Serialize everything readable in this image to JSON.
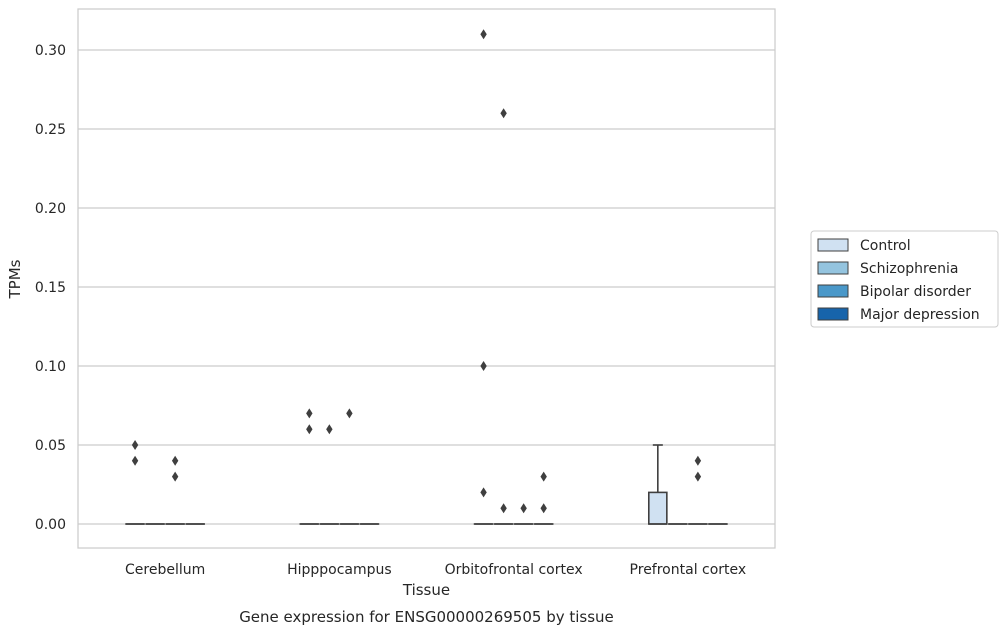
{
  "chart_data": {
    "type": "boxplot",
    "caption": "Gene expression for ENSG00000269505 by tissue",
    "xlabel": "Tissue",
    "ylabel": "TPMs",
    "ylim": [
      -0.015,
      0.325
    ],
    "yticks": [
      0.0,
      0.05,
      0.1,
      0.15,
      0.2,
      0.25,
      0.3
    ],
    "ytick_labels": [
      "0.00",
      "0.05",
      "0.10",
      "0.15",
      "0.20",
      "0.25",
      "0.30"
    ],
    "grid": true,
    "legend_position": "right",
    "categories": [
      "Cerebellum",
      "Hipppocampus",
      "Orbitofrontal cortex",
      "Prefrontal cortex"
    ],
    "series": [
      {
        "name": "Control",
        "color": "#d0e1f2",
        "boxes": [
          {
            "q1": 0,
            "median": 0,
            "q3": 0,
            "whisker_low": 0,
            "whisker_high": 0,
            "outliers": [
              0.05,
              0.04
            ]
          },
          {
            "q1": 0,
            "median": 0,
            "q3": 0,
            "whisker_low": 0,
            "whisker_high": 0,
            "outliers": [
              0.07,
              0.06
            ]
          },
          {
            "q1": 0,
            "median": 0,
            "q3": 0,
            "whisker_low": 0,
            "whisker_high": 0,
            "outliers": [
              0.31,
              0.1,
              0.02
            ]
          },
          {
            "q1": 0,
            "median": 0,
            "q3": 0.02,
            "whisker_low": 0,
            "whisker_high": 0.05,
            "outliers": []
          }
        ]
      },
      {
        "name": "Schizophrenia",
        "color": "#94c4df",
        "boxes": [
          {
            "q1": 0,
            "median": 0,
            "q3": 0,
            "whisker_low": 0,
            "whisker_high": 0,
            "outliers": []
          },
          {
            "q1": 0,
            "median": 0,
            "q3": 0,
            "whisker_low": 0,
            "whisker_high": 0,
            "outliers": [
              0.06
            ]
          },
          {
            "q1": 0,
            "median": 0,
            "q3": 0,
            "whisker_low": 0,
            "whisker_high": 0,
            "outliers": [
              0.26,
              0.01
            ]
          },
          {
            "q1": 0,
            "median": 0,
            "q3": 0,
            "whisker_low": 0,
            "whisker_high": 0,
            "outliers": []
          }
        ]
      },
      {
        "name": "Bipolar disorder",
        "color": "#4a98c9",
        "boxes": [
          {
            "q1": 0,
            "median": 0,
            "q3": 0,
            "whisker_low": 0,
            "whisker_high": 0,
            "outliers": [
              0.04,
              0.03
            ]
          },
          {
            "q1": 0,
            "median": 0,
            "q3": 0,
            "whisker_low": 0,
            "whisker_high": 0,
            "outliers": [
              0.07
            ]
          },
          {
            "q1": 0,
            "median": 0,
            "q3": 0,
            "whisker_low": 0,
            "whisker_high": 0,
            "outliers": [
              0.01
            ]
          },
          {
            "q1": 0,
            "median": 0,
            "q3": 0,
            "whisker_low": 0,
            "whisker_high": 0,
            "outliers": [
              0.04,
              0.03
            ]
          }
        ]
      },
      {
        "name": "Major depression",
        "color": "#1764ab",
        "boxes": [
          {
            "q1": 0,
            "median": 0,
            "q3": 0,
            "whisker_low": 0,
            "whisker_high": 0,
            "outliers": []
          },
          {
            "q1": 0,
            "median": 0,
            "q3": 0,
            "whisker_low": 0,
            "whisker_high": 0,
            "outliers": []
          },
          {
            "q1": 0,
            "median": 0,
            "q3": 0,
            "whisker_low": 0,
            "whisker_high": 0,
            "outliers": [
              0.03,
              0.01
            ]
          },
          {
            "q1": 0,
            "median": 0,
            "q3": 0,
            "whisker_low": 0,
            "whisker_high": 0,
            "outliers": []
          }
        ]
      }
    ]
  }
}
